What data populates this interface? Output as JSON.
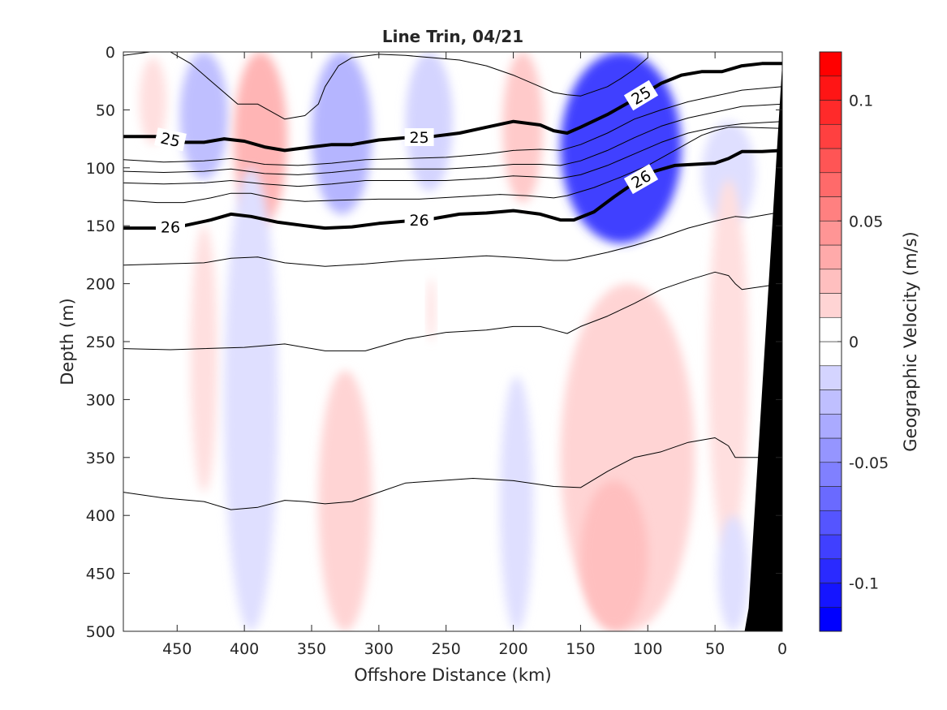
{
  "chart_data": {
    "type": "heatmap",
    "title": "Line Trin, 04/21",
    "xlabel": "Offshore Distance (km)",
    "ylabel": "Depth (m)",
    "xlim": [
      490,
      0
    ],
    "ylim": [
      500,
      0
    ],
    "x_ticks": [
      450,
      400,
      350,
      300,
      250,
      200,
      150,
      100,
      50,
      0
    ],
    "y_ticks": [
      0,
      50,
      100,
      150,
      200,
      250,
      300,
      350,
      400,
      450,
      500
    ],
    "colorbar": {
      "label": "Geographic Velocity (m/s)",
      "range": [
        -0.12,
        0.12
      ],
      "ticks": [
        0.1,
        0.05,
        0,
        -0.05,
        -0.1
      ],
      "tick_labels": [
        "0.1",
        "0.05",
        "0",
        "-0.05",
        "-0.1"
      ],
      "levels": [
        -0.12,
        -0.11,
        -0.1,
        -0.09,
        -0.08,
        -0.07,
        -0.06,
        -0.05,
        -0.04,
        -0.03,
        -0.02,
        -0.01,
        0,
        0.01,
        0.02,
        0.03,
        0.04,
        0.05,
        0.06,
        0.07,
        0.08,
        0.09,
        0.1,
        0.11,
        0.12
      ]
    },
    "colors": {
      "negative": "#0000ff",
      "positive": "#ff0000",
      "zero": "#ffffff",
      "bathymetry": "#000000"
    },
    "velocity_patches": [
      {
        "name": "pink-465",
        "x": [
          478,
          458
        ],
        "y": [
          5,
          80
        ],
        "value": 0.015
      },
      {
        "name": "blue-430",
        "x": [
          448,
          412
        ],
        "y": [
          0,
          110
        ],
        "value": -0.03
      },
      {
        "name": "red-390",
        "x": [
          408,
          368
        ],
        "y": [
          0,
          150
        ],
        "value": 0.035
      },
      {
        "name": "blue-330",
        "x": [
          350,
          305
        ],
        "y": [
          0,
          140
        ],
        "value": -0.035
      },
      {
        "name": "blue-265",
        "x": [
          280,
          245
        ],
        "y": [
          0,
          120
        ],
        "value": -0.02
      },
      {
        "name": "pink-200",
        "x": [
          208,
          178
        ],
        "y": [
          0,
          130
        ],
        "value": 0.025
      },
      {
        "name": "blue-core-115",
        "x": [
          165,
          75
        ],
        "y": [
          0,
          165
        ],
        "value": -0.09
      },
      {
        "name": "blue-ext-40",
        "x": [
          60,
          20
        ],
        "y": [
          60,
          150
        ],
        "value": -0.015
      },
      {
        "name": "pink-425",
        "x": [
          440,
          420
        ],
        "y": [
          150,
          380
        ],
        "value": 0.015
      },
      {
        "name": "blue-deep-395",
        "x": [
          415,
          375
        ],
        "y": [
          100,
          500
        ],
        "value": -0.015
      },
      {
        "name": "pink-260",
        "x": [
          264,
          258
        ],
        "y": [
          195,
          250
        ],
        "value": 0.015
      },
      {
        "name": "pink-325",
        "x": [
          345,
          305
        ],
        "y": [
          275,
          500
        ],
        "value": 0.02
      },
      {
        "name": "blue-200",
        "x": [
          210,
          185
        ],
        "y": [
          280,
          500
        ],
        "value": -0.015
      },
      {
        "name": "pink-deep-120",
        "x": [
          165,
          65
        ],
        "y": [
          200,
          500
        ],
        "value": 0.02
      },
      {
        "name": "red-deep-125",
        "x": [
          150,
          100
        ],
        "y": [
          370,
          500
        ],
        "value": 0.03
      },
      {
        "name": "pink-40",
        "x": [
          55,
          25
        ],
        "y": [
          110,
          430
        ],
        "value": 0.015
      },
      {
        "name": "blue-deep-30",
        "x": [
          48,
          25
        ],
        "y": [
          400,
          500
        ],
        "value": -0.015
      }
    ],
    "isopycnals": [
      {
        "label": "",
        "bold": false,
        "x": [
          490,
          470,
          455,
          440,
          425,
          405,
          390,
          370,
          355,
          345,
          340,
          330,
          320,
          300,
          280,
          260,
          240,
          220,
          200,
          180,
          170,
          160,
          150,
          130,
          120,
          110,
          100
        ],
        "y": [
          3,
          0,
          0,
          10,
          25,
          45,
          45,
          58,
          55,
          45,
          30,
          12,
          5,
          2,
          3,
          5,
          7,
          12,
          20,
          30,
          35,
          37,
          38,
          30,
          23,
          15,
          5
        ]
      },
      {
        "label": "25",
        "bold": true,
        "x": [
          490,
          465,
          445,
          430,
          415,
          400,
          385,
          370,
          350,
          335,
          320,
          300,
          280,
          260,
          240,
          220,
          200,
          180,
          170,
          160,
          150,
          130,
          110,
          90,
          75,
          60,
          45,
          30,
          15,
          0
        ],
        "y": [
          73,
          73,
          78,
          78,
          75,
          77,
          82,
          85,
          82,
          80,
          80,
          76,
          74,
          73,
          70,
          65,
          60,
          63,
          68,
          70,
          65,
          54,
          41,
          27,
          20,
          17,
          17,
          12,
          10,
          10
        ]
      },
      {
        "label": "",
        "bold": false,
        "x": [
          490,
          460,
          430,
          410,
          385,
          360,
          335,
          310,
          280,
          250,
          220,
          200,
          180,
          165,
          150,
          130,
          110,
          90,
          70,
          50,
          30,
          0
        ],
        "y": [
          93,
          95,
          94,
          92,
          97,
          98,
          96,
          93,
          92,
          91,
          88,
          85,
          84,
          85,
          80,
          70,
          58,
          50,
          43,
          38,
          33,
          30
        ]
      },
      {
        "label": "",
        "bold": false,
        "x": [
          490,
          460,
          430,
          410,
          385,
          360,
          335,
          310,
          280,
          250,
          220,
          200,
          180,
          165,
          150,
          130,
          110,
          90,
          70,
          50,
          30,
          0
        ],
        "y": [
          103,
          104,
          103,
          101,
          105,
          106,
          104,
          101,
          101,
          101,
          99,
          97,
          97,
          98,
          94,
          85,
          74,
          64,
          57,
          52,
          47,
          45
        ]
      },
      {
        "label": "",
        "bold": false,
        "x": [
          490,
          460,
          430,
          410,
          385,
          360,
          335,
          310,
          280,
          250,
          220,
          200,
          180,
          165,
          150,
          130,
          110,
          90,
          70,
          50,
          30,
          0
        ],
        "y": [
          113,
          114,
          113,
          111,
          114,
          116,
          114,
          111,
          111,
          111,
          109,
          107,
          108,
          109,
          106,
          98,
          88,
          78,
          70,
          65,
          62,
          60
        ]
      },
      {
        "label": "26",
        "bold": true,
        "x": [
          490,
          465,
          445,
          425,
          410,
          395,
          375,
          355,
          340,
          320,
          300,
          280,
          260,
          240,
          220,
          200,
          180,
          165,
          155,
          140,
          125,
          110,
          95,
          80,
          65,
          50,
          40,
          30,
          15,
          0
        ],
        "y": [
          152,
          152,
          150,
          145,
          140,
          142,
          147,
          150,
          152,
          151,
          148,
          146,
          144,
          140,
          139,
          137,
          140,
          145,
          145,
          138,
          125,
          113,
          103,
          98,
          97,
          96,
          92,
          86,
          86,
          85
        ]
      },
      {
        "label": "",
        "bold": false,
        "x": [
          490,
          465,
          445,
          425,
          410,
          395,
          375,
          355,
          330,
          300,
          270,
          240,
          210,
          190,
          170,
          160,
          140,
          120,
          100,
          80,
          60,
          50,
          40,
          30,
          0
        ],
        "y": [
          128,
          130,
          130,
          126,
          122,
          122,
          127,
          129,
          128,
          127,
          127,
          125,
          123,
          124,
          126,
          124,
          117,
          108,
          98,
          85,
          72,
          68,
          65,
          65,
          66
        ]
      },
      {
        "label": "",
        "bold": false,
        "x": [
          490,
          460,
          430,
          410,
          390,
          370,
          340,
          310,
          280,
          250,
          220,
          190,
          170,
          160,
          150,
          130,
          110,
          90,
          70,
          50,
          35,
          25,
          0
        ],
        "y": [
          184,
          183,
          182,
          178,
          177,
          182,
          185,
          183,
          180,
          178,
          176,
          178,
          180,
          180,
          178,
          173,
          167,
          160,
          152,
          146,
          142,
          143,
          138
        ]
      },
      {
        "label": "",
        "bold": false,
        "x": [
          490,
          455,
          430,
          400,
          370,
          340,
          310,
          280,
          250,
          220,
          200,
          180,
          170,
          160,
          150,
          130,
          110,
          90,
          70,
          50,
          40,
          35,
          30,
          0
        ],
        "y": [
          256,
          257,
          256,
          255,
          252,
          258,
          258,
          248,
          242,
          240,
          237,
          237,
          240,
          243,
          237,
          228,
          217,
          205,
          197,
          190,
          193,
          200,
          205,
          200
        ]
      },
      {
        "label": "",
        "bold": false,
        "x": [
          490,
          460,
          430,
          410,
          390,
          370,
          355,
          340,
          320,
          300,
          280,
          255,
          230,
          200,
          170,
          150,
          130,
          110,
          90,
          70,
          50,
          40,
          35,
          0
        ],
        "y": [
          380,
          385,
          388,
          395,
          393,
          387,
          388,
          390,
          388,
          380,
          372,
          370,
          368,
          370,
          375,
          376,
          362,
          350,
          345,
          337,
          333,
          340,
          350,
          350
        ]
      }
    ],
    "bathymetry": {
      "x": [
        28,
        25,
        0,
        0
      ],
      "y": [
        500,
        480,
        10,
        500
      ]
    }
  }
}
